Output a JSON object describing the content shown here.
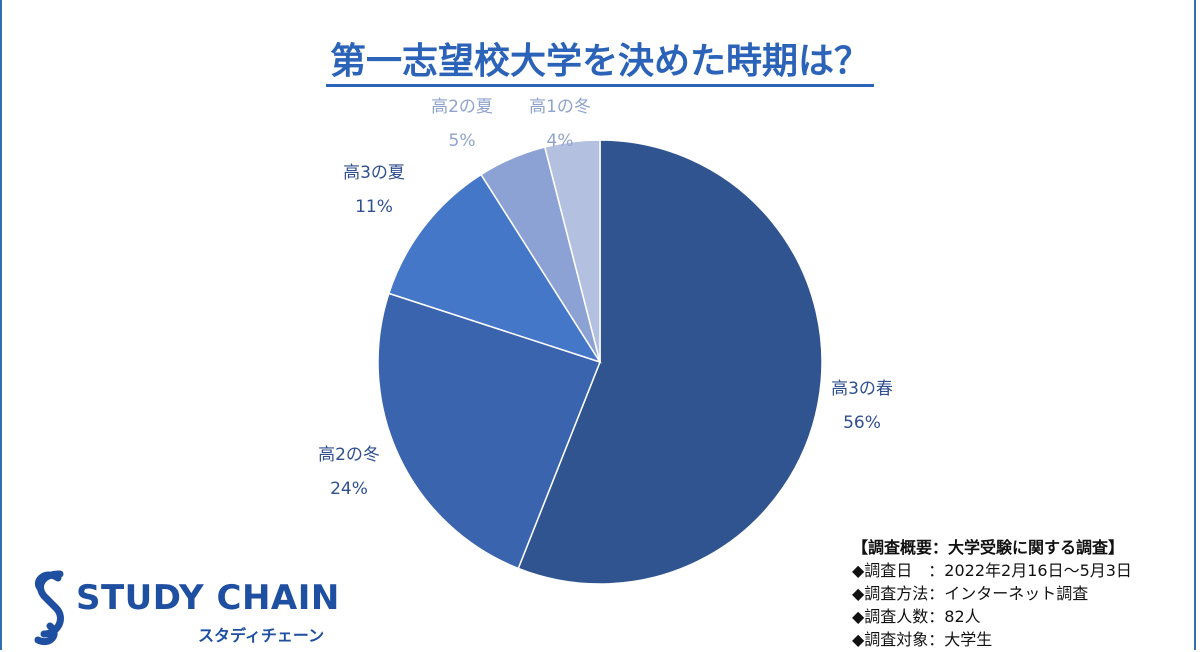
{
  "chart_data": {
    "type": "pie",
    "title": "第一志望校大学を決めた時期は？",
    "slices": [
      {
        "label": "高3の春",
        "value": 56,
        "value_label": "56%",
        "color": "#30548f"
      },
      {
        "label": "高2の冬",
        "value": 24,
        "value_label": "24%",
        "color": "#3a64ad"
      },
      {
        "label": "高3の夏",
        "value": 11,
        "value_label": "11%",
        "color": "#4577c9"
      },
      {
        "label": "高2の夏",
        "value": 5,
        "value_label": "5%",
        "color": "#8da2d4"
      },
      {
        "label": "高1の冬",
        "value": 4,
        "value_label": "4%",
        "color": "#b4c0e0"
      }
    ]
  },
  "logo": {
    "name": "STUDY CHAIN",
    "sub": "スタディチェーン",
    "color": "#1f4fa0"
  },
  "survey": {
    "heading": "【調査概要：大学受験に関する調査】",
    "lines": [
      "◆調査日　：2022年2月16日～5月3日",
      "◆調査方法：インターネット調査",
      "◆調査人数：82人",
      "◆調査対象：大学生"
    ]
  }
}
